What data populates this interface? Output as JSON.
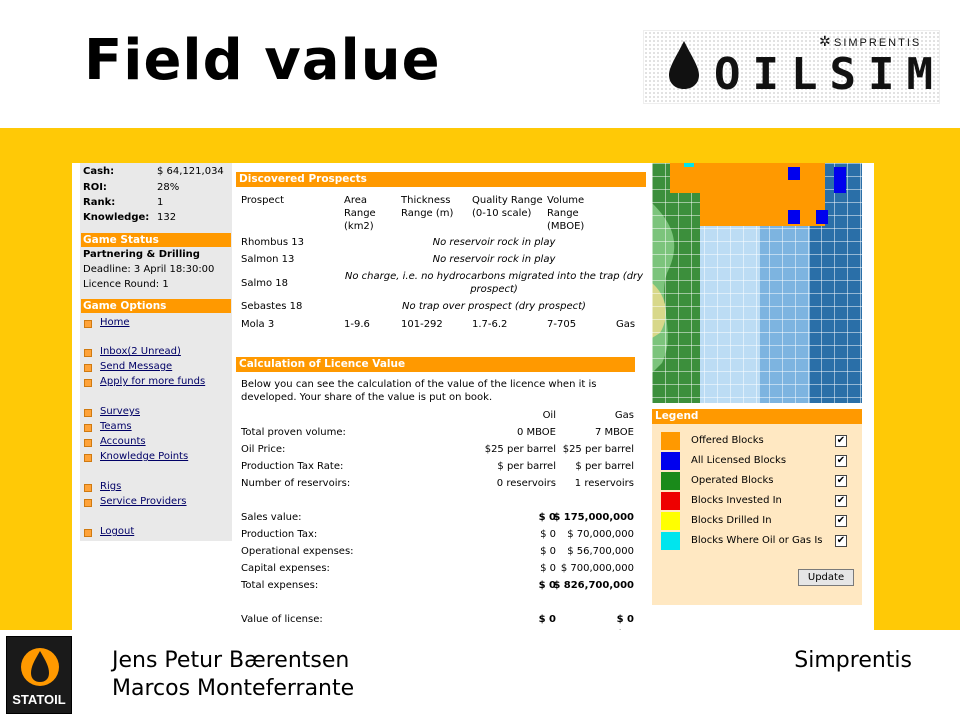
{
  "slide": {
    "title": "Field value",
    "logo": {
      "text": "OILSIM",
      "small_text": "SIMPRENTIS"
    },
    "statoil_label": "STATOIL",
    "authors": [
      "Jens Petur Bærentsen",
      "Marcos Monteferrante"
    ],
    "company": "Simprentis"
  },
  "colors": {
    "band": "#ffc906",
    "accent": "#ff9900"
  },
  "sidebar": {
    "stats": [
      {
        "label": "Cash:",
        "value": "$ 64,121,034"
      },
      {
        "label": "ROI:",
        "value": "28%"
      },
      {
        "label": "Rank:",
        "value": "1"
      },
      {
        "label": "Knowledge:",
        "value": "132"
      }
    ],
    "game_status": {
      "header": "Game Status",
      "phase": "Partnering & Drilling",
      "deadline": "Deadline: 3 April 18:30:00",
      "licence_round": "Licence Round: 1"
    },
    "game_options": {
      "header": "Game Options",
      "items": [
        {
          "label": "Home"
        },
        {
          "label": "Inbox(2 Unread)"
        },
        {
          "label": "Send Message"
        },
        {
          "label": "Apply for more funds"
        },
        {
          "label": "Surveys"
        },
        {
          "label": "Teams"
        },
        {
          "label": "Accounts"
        },
        {
          "label": "Knowledge Points"
        },
        {
          "label": "Rigs"
        },
        {
          "label": "Service Providers"
        },
        {
          "label": "Logout"
        }
      ]
    }
  },
  "prospects": {
    "header": "Discovered Prospects",
    "columns": [
      "Prospect",
      "Area Range (km2)",
      "Thickness Range (m)",
      "Quality Range (0-10 scale)",
      "Volume Range (MBOE)"
    ],
    "col_lines": {
      "prospect": "Prospect",
      "area": [
        "Area",
        "Range",
        "(km2)"
      ],
      "thickness": [
        "Thickness",
        "Range (m)"
      ],
      "quality": [
        "Quality Range",
        "(0-10 scale)"
      ],
      "volume": [
        "Volume",
        "Range",
        "(MBOE)"
      ]
    },
    "rows": [
      {
        "name": "Rhombus 13",
        "note": "No reservoir rock in play"
      },
      {
        "name": "Salmon 13",
        "note": "No reservoir rock in play"
      },
      {
        "name": "Salmo 18",
        "note_lines": [
          "No charge, i.e. no hydrocarbons migrated into the trap (dry",
          "prospect)"
        ]
      },
      {
        "name": "Sebastes 18",
        "note": "No trap over prospect (dry prospect)"
      },
      {
        "name": "Mola 3",
        "area": "1-9.6",
        "thickness": "101-292",
        "quality": "1.7-6.2",
        "volume": "7-705",
        "type": "Gas"
      }
    ]
  },
  "licence": {
    "header": "Calculation of Licence Value",
    "intro": [
      "Below you can see the calculation of the value of the licence when it is",
      "developed. Your share of the value is put on book."
    ],
    "col_oil": "Oil",
    "col_gas": "Gas",
    "rows": [
      {
        "label": "Total proven volume:",
        "oil": "0 MBOE",
        "gas": "7 MBOE"
      },
      {
        "label": "Oil Price:",
        "oil": "$25 per barrel",
        "gas": "$25 per barrel"
      },
      {
        "label": "Production Tax Rate:",
        "oil": "$ per barrel",
        "gas": "$ per barrel"
      },
      {
        "label": "Number of reservoirs:",
        "oil": "0 reservoirs",
        "gas": "1 reservoirs"
      },
      {
        "label": "Sales value:",
        "oil": "$ 0",
        "gas": "$ 175,000,000",
        "bold": true
      },
      {
        "label": "Production Tax:",
        "oil": "$ 0",
        "gas": "$ 70,000,000"
      },
      {
        "label": "Operational expenses:",
        "oil": "$ 0",
        "gas": "$ 56,700,000"
      },
      {
        "label": "Capital expenses:",
        "oil": "$ 0",
        "gas": "$ 700,000,000"
      },
      {
        "label": "Total expenses:",
        "oil": "$ 0",
        "gas": "$ 826,700,000",
        "bold": true
      },
      {
        "label": "Value of license:",
        "oil": "$ 0",
        "gas": "$ 0",
        "bold": true
      }
    ],
    "grand_total": "$ 0"
  },
  "legend": {
    "header": "Legend",
    "items": [
      {
        "label": "Offered Blocks",
        "color": "#ff9900",
        "checked": true
      },
      {
        "label": "All Licensed Blocks",
        "color": "#0000ee",
        "checked": true
      },
      {
        "label": "Operated Blocks",
        "color": "#1a8a1a",
        "checked": true
      },
      {
        "label": "Blocks Invested In",
        "color": "#ee0000",
        "checked": true
      },
      {
        "label": "Blocks Drilled In",
        "color": "#ffff00",
        "checked": true
      },
      {
        "label": "Blocks Where Oil or Gas Is",
        "color": "#00e5ee",
        "checked": true
      }
    ],
    "check_mark": "✔",
    "update_label": "Update"
  }
}
